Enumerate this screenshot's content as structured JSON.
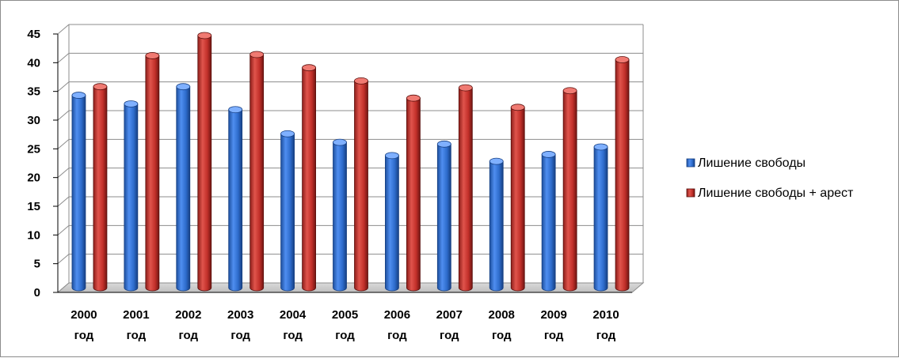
{
  "chart_data": {
    "type": "bar",
    "categories": [
      "2000 год",
      "2001 год",
      "2002 год",
      "2003 год",
      "2004 год",
      "2005 год",
      "2006 год",
      "2007 год",
      "2008 год",
      "2009 год",
      "2010 год"
    ],
    "category_lines": [
      [
        "2000",
        "год"
      ],
      [
        "2001",
        "год"
      ],
      [
        "2002",
        "год"
      ],
      [
        "2003",
        "год"
      ],
      [
        "2004",
        "год"
      ],
      [
        "2005",
        "год"
      ],
      [
        "2006",
        "год"
      ],
      [
        "2007",
        "год"
      ],
      [
        "2008",
        "год"
      ],
      [
        "2009",
        "год"
      ],
      [
        "2010",
        "год"
      ]
    ],
    "series": [
      {
        "name": "Лишение свободы",
        "color": "#2f6fd1",
        "values": [
          33.5,
          32,
          35,
          31,
          26.8,
          25.3,
          23,
          25,
          22,
          23.2,
          24.5
        ]
      },
      {
        "name": "Лишение свободы + арест",
        "color": "#c8302b",
        "values": [
          35,
          40.4,
          43.9,
          40.6,
          38.3,
          36,
          33,
          34.8,
          31.4,
          34.3,
          39.7
        ]
      }
    ],
    "ylim": [
      0,
      45
    ],
    "yticks": [
      0,
      5,
      10,
      15,
      20,
      25,
      30,
      35,
      40,
      45
    ],
    "grid": true,
    "legend_position": "right",
    "chart_style": "3d-cylinder-bars"
  }
}
